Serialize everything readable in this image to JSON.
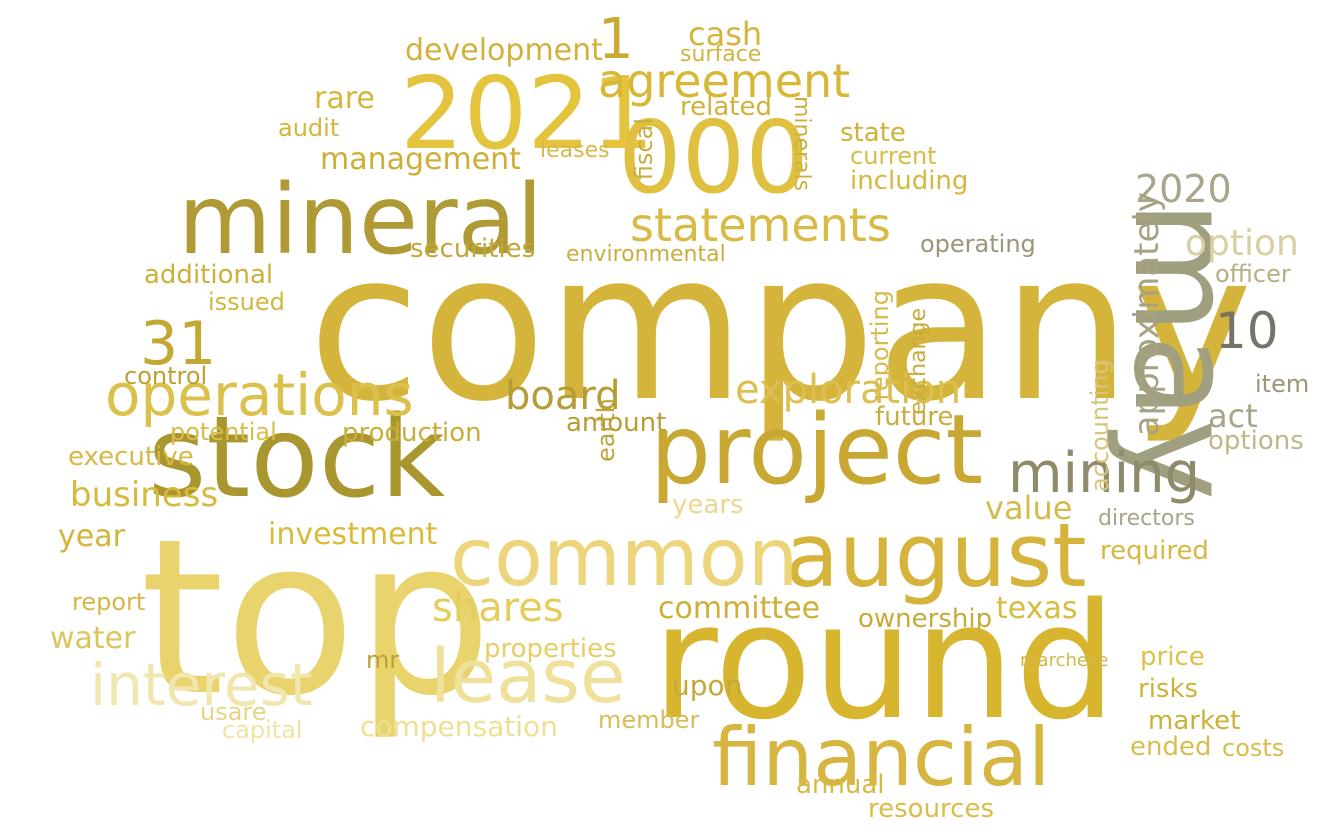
{
  "words": [
    {
      "text": "company",
      "color": "#d4b43a"
    },
    {
      "text": "round",
      "color": "#d8b52e"
    },
    {
      "text": "top",
      "color": "#e9d36d"
    },
    {
      "text": "stock",
      "color": "#a8962e"
    },
    {
      "text": "may",
      "color": "#a0a080"
    },
    {
      "text": "2021",
      "color": "#e3c43c"
    },
    {
      "text": "000",
      "color": "#e0c040"
    },
    {
      "text": "mineral",
      "color": "#b09a35"
    },
    {
      "text": "project",
      "color": "#c8a832"
    },
    {
      "text": "august",
      "color": "#d6b33a"
    },
    {
      "text": "common",
      "color": "#ecd57a"
    },
    {
      "text": "financial",
      "color": "#d6b540"
    },
    {
      "text": "lease",
      "color": "#efe09c"
    },
    {
      "text": "interest",
      "color": "#f2e6b0"
    },
    {
      "text": "operations",
      "color": "#dcc04c"
    },
    {
      "text": "agreement",
      "color": "#d8b636"
    },
    {
      "text": "statements",
      "color": "#d8bb44"
    },
    {
      "text": "mining",
      "color": "#8f8a6a"
    },
    {
      "text": "31",
      "color": "#c4a834"
    },
    {
      "text": "1",
      "color": "#c8aa34"
    },
    {
      "text": "2020",
      "color": "#a9a48a"
    },
    {
      "text": "10",
      "color": "#767468"
    },
    {
      "text": "board",
      "color": "#b59c34"
    },
    {
      "text": "shares",
      "color": "#e4cd5a"
    },
    {
      "text": "exploration",
      "color": "#dcbf50"
    },
    {
      "text": "business",
      "color": "#d7b93c"
    },
    {
      "text": "cash",
      "color": "#d4b43a"
    },
    {
      "text": "management",
      "color": "#cdae36"
    },
    {
      "text": "development",
      "color": "#d2b23a"
    },
    {
      "text": "option",
      "color": "#d9cfa0"
    },
    {
      "text": "approximately",
      "color": "#a8a184"
    },
    {
      "text": "compensation",
      "color": "#efdf92"
    },
    {
      "text": "capital",
      "color": "#f1e3a5"
    },
    {
      "text": "committee",
      "color": "#ccb03a"
    },
    {
      "text": "texas",
      "color": "#d8bc3e"
    },
    {
      "text": "water",
      "color": "#ddc45c"
    },
    {
      "text": "investment",
      "color": "#d9bb3a"
    },
    {
      "text": "years",
      "color": "#ecd790"
    },
    {
      "text": "value",
      "color": "#d4bb4c"
    },
    {
      "text": "ownership",
      "color": "#c6aa3a"
    },
    {
      "text": "properties",
      "color": "#e6cd66"
    },
    {
      "text": "resources",
      "color": "#d9bd48"
    },
    {
      "text": "annual",
      "color": "#d6b944"
    },
    {
      "text": "market",
      "color": "#ccb037"
    },
    {
      "text": "risks",
      "color": "#cfb13a"
    },
    {
      "text": "price",
      "color": "#dcc248"
    },
    {
      "text": "ended",
      "color": "#d8bd50"
    },
    {
      "text": "directors",
      "color": "#a9a388"
    },
    {
      "text": "required",
      "color": "#d6b842"
    },
    {
      "text": "act",
      "color": "#a8a488"
    },
    {
      "text": "options",
      "color": "#c0b68c"
    },
    {
      "text": "item",
      "color": "#9a9678"
    },
    {
      "text": "officer",
      "color": "#b8ae84"
    },
    {
      "text": "accounting",
      "color": "#d9c57a"
    },
    {
      "text": "future",
      "color": "#c8ad3e"
    },
    {
      "text": "production",
      "color": "#c8ae38"
    },
    {
      "text": "amount",
      "color": "#b89c34"
    },
    {
      "text": "related",
      "color": "#cfb33c"
    },
    {
      "text": "audit",
      "color": "#d2b43e"
    },
    {
      "text": "state",
      "color": "#d0b13a"
    },
    {
      "text": "current",
      "color": "#d8bc44"
    },
    {
      "text": "including",
      "color": "#d6b840"
    },
    {
      "text": "operating",
      "color": "#9d9578"
    },
    {
      "text": "fiscal",
      "color": "#c9ad3e"
    },
    {
      "text": "executive",
      "color": "#d8b842"
    },
    {
      "text": "additional",
      "color": "#cdb03a"
    },
    {
      "text": "issued",
      "color": "#d3b73e"
    },
    {
      "text": "securities",
      "color": "#c2a636"
    },
    {
      "text": "rare",
      "color": "#d4b63e"
    },
    {
      "text": "surface",
      "color": "#d1b43d"
    },
    {
      "text": "year",
      "color": "#d3b53c"
    },
    {
      "text": "potential",
      "color": "#d8bd48"
    },
    {
      "text": "control",
      "color": "#bca035"
    },
    {
      "text": "minerals",
      "color": "#cbb040"
    },
    {
      "text": "leases",
      "color": "#d6b946"
    },
    {
      "text": "environmental",
      "color": "#c9ae3e"
    },
    {
      "text": "reporting",
      "color": "#d6bb4a"
    },
    {
      "text": "exchange",
      "color": "#c7ab3a"
    },
    {
      "text": "mr",
      "color": "#bba036"
    },
    {
      "text": "upon",
      "color": "#c4a838"
    },
    {
      "text": "member",
      "color": "#d7bd58"
    },
    {
      "text": "usare",
      "color": "#e7d486"
    },
    {
      "text": "costs",
      "color": "#d7bd4a"
    },
    {
      "text": "report",
      "color": "#d6b844"
    },
    {
      "text": "earth",
      "color": "#c0a438"
    },
    {
      "text": "marchese",
      "color": "#d1b848"
    }
  ]
}
